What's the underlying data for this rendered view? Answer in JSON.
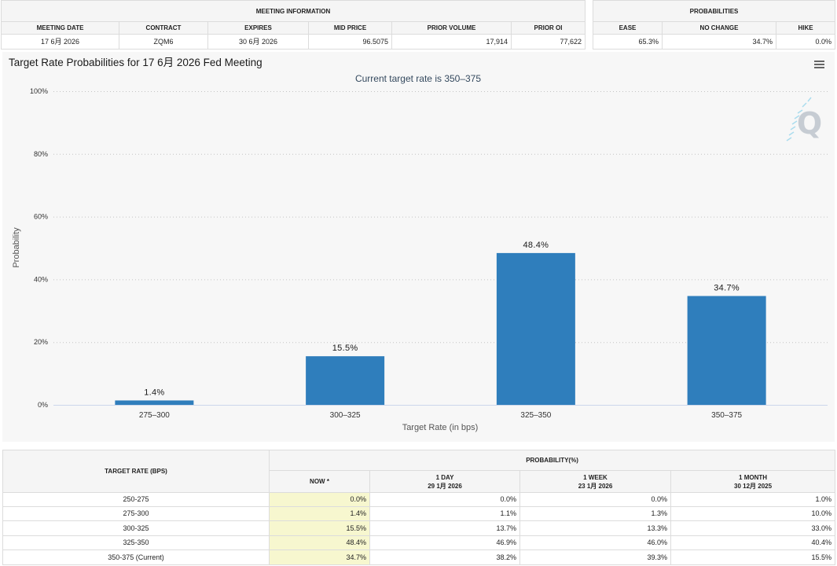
{
  "meeting_info": {
    "title": "MEETING INFORMATION",
    "headers": [
      "MEETING DATE",
      "CONTRACT",
      "EXPIRES",
      "MID PRICE",
      "PRIOR VOLUME",
      "PRIOR OI"
    ],
    "values": [
      "17 6月 2026",
      "ZQM6",
      "30 6月 2026",
      "96.5075",
      "17,914",
      "77,622"
    ]
  },
  "probabilities": {
    "title": "PROBABILITIES",
    "headers": [
      "EASE",
      "NO CHANGE",
      "HIKE"
    ],
    "values": [
      "65.3%",
      "34.7%",
      "0.0%"
    ]
  },
  "chart": {
    "menu_icon": "hamburger-menu-icon",
    "watermark_icon": "q-logo-icon",
    "watermark_text": "Q"
  },
  "chart_data": {
    "type": "bar",
    "title": "Target Rate Probabilities for 17 6月 2026 Fed Meeting",
    "subtitle": "Current target rate is 350–375",
    "xlabel": "Target Rate (in bps)",
    "ylabel": "Probability",
    "categories": [
      "275–300",
      "300–325",
      "325–350",
      "350–375"
    ],
    "values": [
      1.4,
      15.5,
      48.4,
      34.7
    ],
    "data_labels": [
      "1.4%",
      "15.5%",
      "48.4%",
      "34.7%"
    ],
    "ylim": [
      0,
      100
    ],
    "yticks": [
      0,
      20,
      40,
      60,
      80,
      100
    ],
    "ytick_labels": [
      "0%",
      "20%",
      "40%",
      "60%",
      "80%",
      "100%"
    ],
    "grid": true,
    "legend": "none",
    "bar_color": "#2f7ebc"
  },
  "rate_table": {
    "rate_header": "TARGET RATE (BPS)",
    "group_header": "PROBABILITY(%)",
    "columns": [
      {
        "label": "NOW *"
      },
      {
        "label": "1 DAY",
        "date": "29 1月 2026"
      },
      {
        "label": "1 WEEK",
        "date": "23 1月 2026"
      },
      {
        "label": "1 MONTH",
        "date": "30 12月 2025"
      }
    ],
    "rows": [
      {
        "rate": "250-275",
        "values": [
          "0.0%",
          "0.0%",
          "0.0%",
          "1.0%"
        ]
      },
      {
        "rate": "275-300",
        "values": [
          "1.4%",
          "1.1%",
          "1.3%",
          "10.0%"
        ]
      },
      {
        "rate": "300-325",
        "values": [
          "15.5%",
          "13.7%",
          "13.3%",
          "33.0%"
        ]
      },
      {
        "rate": "325-350",
        "values": [
          "48.4%",
          "46.9%",
          "46.0%",
          "40.4%"
        ]
      },
      {
        "rate": "350-375 (Current)",
        "values": [
          "34.7%",
          "38.2%",
          "39.3%",
          "15.5%"
        ]
      }
    ]
  },
  "colors": {
    "now_highlight": "#f7f7cf",
    "header_background": "#f5f5f5"
  }
}
